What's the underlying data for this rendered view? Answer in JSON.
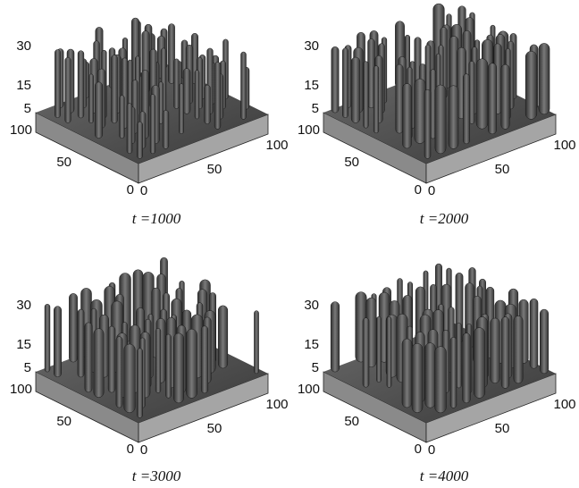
{
  "panels": [
    {
      "caption": "t =1000",
      "zticks": [
        "30",
        "15",
        "5"
      ],
      "yticks": [
        "100",
        "50",
        "0"
      ],
      "xticks": [
        "0",
        "50",
        "100"
      ]
    },
    {
      "caption": "t =2000",
      "zticks": [
        "30",
        "15",
        "5"
      ],
      "yticks": [
        "100",
        "50",
        "0"
      ],
      "xticks": [
        "0",
        "50",
        "100"
      ]
    },
    {
      "caption": "t =3000",
      "zticks": [
        "30",
        "15",
        "5"
      ],
      "yticks": [
        "100",
        "50",
        "0"
      ],
      "xticks": [
        "0",
        "50",
        "100"
      ]
    },
    {
      "caption": "t =4000",
      "zticks": [
        "30",
        "15",
        "5"
      ],
      "yticks": [
        "100",
        "50",
        "0"
      ],
      "xticks": [
        "0",
        "50",
        "100"
      ]
    }
  ]
}
